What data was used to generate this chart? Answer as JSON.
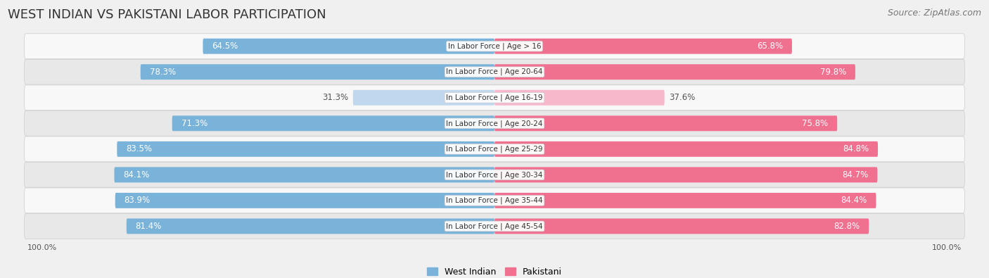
{
  "title": "WEST INDIAN VS PAKISTANI LABOR PARTICIPATION",
  "source": "Source: ZipAtlas.com",
  "categories": [
    "In Labor Force | Age > 16",
    "In Labor Force | Age 20-64",
    "In Labor Force | Age 16-19",
    "In Labor Force | Age 20-24",
    "In Labor Force | Age 25-29",
    "In Labor Force | Age 30-34",
    "In Labor Force | Age 35-44",
    "In Labor Force | Age 45-54"
  ],
  "west_indian": [
    64.5,
    78.3,
    31.3,
    71.3,
    83.5,
    84.1,
    83.9,
    81.4
  ],
  "pakistani": [
    65.8,
    79.8,
    37.6,
    75.8,
    84.8,
    84.7,
    84.4,
    82.8
  ],
  "west_indian_color": "#7ab3d9",
  "pakistani_color": "#f07090",
  "west_indian_light_color": "#c0d8ee",
  "pakistani_light_color": "#f8b8cc",
  "label_color_dark": "#555555",
  "label_color_white": "#ffffff",
  "bg_color": "#f0f0f0",
  "row_bg_light": "#f8f8f8",
  "row_bg_dark": "#e8e8e8",
  "bar_height": 0.6,
  "max_value": 100.0,
  "title_fontsize": 13,
  "source_fontsize": 9,
  "value_fontsize": 8.5,
  "category_fontsize": 7.5,
  "legend_fontsize": 9,
  "axis_label_fontsize": 8
}
